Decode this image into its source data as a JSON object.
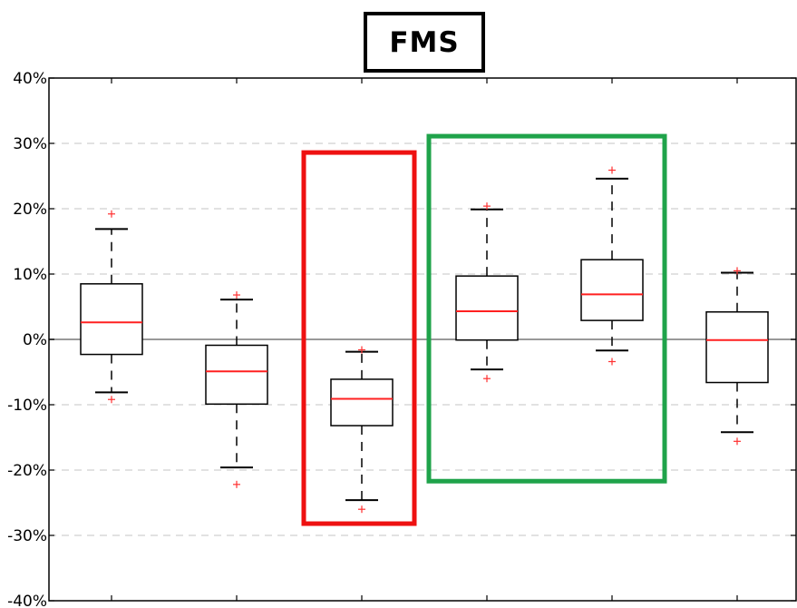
{
  "title": "FMS",
  "chart_data": {
    "type": "boxplot",
    "title": "FMS",
    "xlabel": "",
    "ylabel": "",
    "ylim": [
      -40,
      40
    ],
    "y_ticks": [
      40,
      30,
      20,
      10,
      0,
      -10,
      -20,
      -30,
      -40
    ],
    "y_tick_labels": [
      "40%",
      "30%",
      "20%",
      "10%",
      "0%",
      "-10%",
      "-20%",
      "-30%",
      "-40%"
    ],
    "grid": "horizontal dashed",
    "reference_line": 0,
    "boxes": [
      {
        "whisker_low": -8.1,
        "q1": -2.3,
        "median": 2.6,
        "q3": 8.5,
        "whisker_high": 16.9,
        "outliers": [
          19.2,
          -9.2
        ]
      },
      {
        "whisker_low": -19.6,
        "q1": -9.9,
        "median": -4.9,
        "q3": -0.9,
        "whisker_high": 6.1,
        "outliers": [
          6.8,
          -22.2
        ]
      },
      {
        "whisker_low": -24.6,
        "q1": -13.2,
        "median": -9.1,
        "q3": -6.1,
        "whisker_high": -1.9,
        "outliers": [
          -1.6,
          -26.0
        ]
      },
      {
        "whisker_low": -4.6,
        "q1": -0.1,
        "median": 4.3,
        "q3": 9.7,
        "whisker_high": 19.9,
        "outliers": [
          20.4,
          -6.0
        ]
      },
      {
        "whisker_low": -1.7,
        "q1": 2.9,
        "median": 6.9,
        "q3": 12.2,
        "whisker_high": 24.6,
        "outliers": [
          25.9,
          -3.4
        ]
      },
      {
        "whisker_low": -14.2,
        "q1": -6.6,
        "median": -0.1,
        "q3": 4.2,
        "whisker_high": 10.2,
        "outliers": [
          10.5,
          -15.6
        ]
      }
    ],
    "highlights": [
      {
        "color": "#ee1111",
        "boxes": [
          2
        ],
        "y_range": [
          28.6,
          -28.2
        ]
      },
      {
        "color": "#1fa34a",
        "boxes": [
          3,
          4
        ],
        "y_range": [
          31.1,
          -21.7
        ]
      }
    ],
    "colors": {
      "box": "#000000",
      "median": "#ff2020",
      "outlier": "#ff3030",
      "grid": "#d0d0d0",
      "zero_line": "#999999"
    }
  }
}
